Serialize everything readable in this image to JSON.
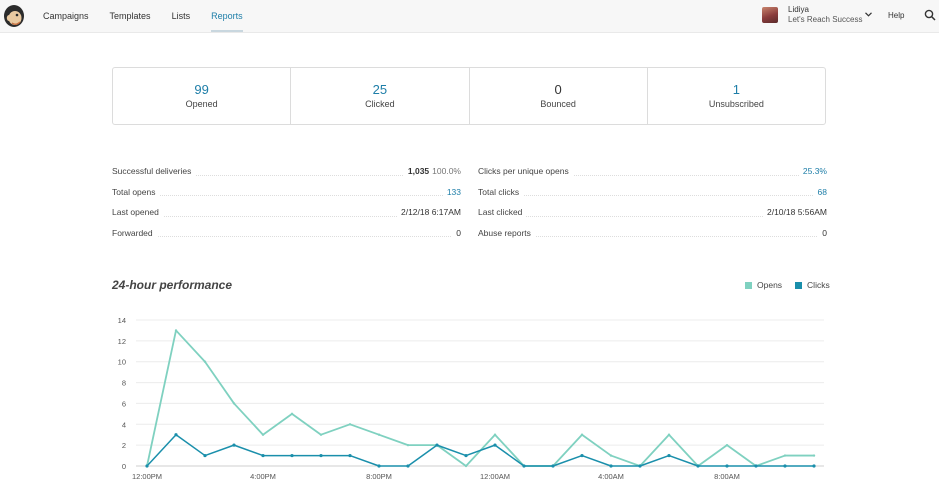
{
  "nav": {
    "items": [
      "Campaigns",
      "Templates",
      "Lists",
      "Reports"
    ],
    "active": "Reports"
  },
  "user": {
    "name": "Lidiya",
    "org": "Let's Reach Success"
  },
  "help_label": "Help",
  "stats": [
    {
      "value": "99",
      "label": "Opened"
    },
    {
      "value": "25",
      "label": "Clicked"
    },
    {
      "value": "0",
      "label": "Bounced"
    },
    {
      "value": "1",
      "label": "Unsubscribed"
    }
  ],
  "details_left": [
    {
      "label": "Successful deliveries",
      "value": "1,035",
      "pct": "100.0%"
    },
    {
      "label": "Total opens",
      "value": "133"
    },
    {
      "label": "Last opened",
      "value": "2/12/18 6:17AM"
    },
    {
      "label": "Forwarded",
      "value": "0"
    }
  ],
  "details_right": [
    {
      "label": "Clicks per unique opens",
      "value": "25.3%"
    },
    {
      "label": "Total clicks",
      "value": "68"
    },
    {
      "label": "Last clicked",
      "value": "2/10/18 5:56AM"
    },
    {
      "label": "Abuse reports",
      "value": "0"
    }
  ],
  "colors": {
    "accent": "#1e7ea8",
    "opens": "#7fd1c0",
    "clicks": "#1a8fab"
  },
  "chart_data": {
    "type": "line",
    "title": "24-hour performance",
    "ylim": [
      0,
      14
    ],
    "yticks": [
      0,
      2,
      4,
      6,
      8,
      10,
      12,
      14
    ],
    "xtick_labels": [
      "12:00PM",
      "4:00PM",
      "8:00PM",
      "12:00AM",
      "4:00AM",
      "8:00AM"
    ],
    "x": [
      "12:00PM",
      "1:00PM",
      "2:00PM",
      "3:00PM",
      "4:00PM",
      "5:00PM",
      "6:00PM",
      "7:00PM",
      "8:00PM",
      "9:00PM",
      "10:00PM",
      "11:00PM",
      "12:00AM",
      "1:00AM",
      "2:00AM",
      "3:00AM",
      "4:00AM",
      "5:00AM",
      "6:00AM",
      "7:00AM",
      "8:00AM",
      "9:00AM",
      "10:00AM",
      "11:00AM"
    ],
    "grid": true,
    "legend": "top-right",
    "series": [
      {
        "name": "Opens",
        "values": [
          0,
          13,
          10,
          6,
          3,
          5,
          3,
          4,
          3,
          2,
          2,
          0,
          3,
          0,
          0,
          3,
          1,
          0,
          3,
          0,
          2,
          0,
          1,
          1
        ]
      },
      {
        "name": "Clicks",
        "values": [
          0,
          3,
          1,
          2,
          1,
          1,
          1,
          1,
          0,
          0,
          2,
          1,
          2,
          0,
          0,
          1,
          0,
          0,
          1,
          0,
          0,
          0,
          0,
          0
        ]
      }
    ]
  }
}
